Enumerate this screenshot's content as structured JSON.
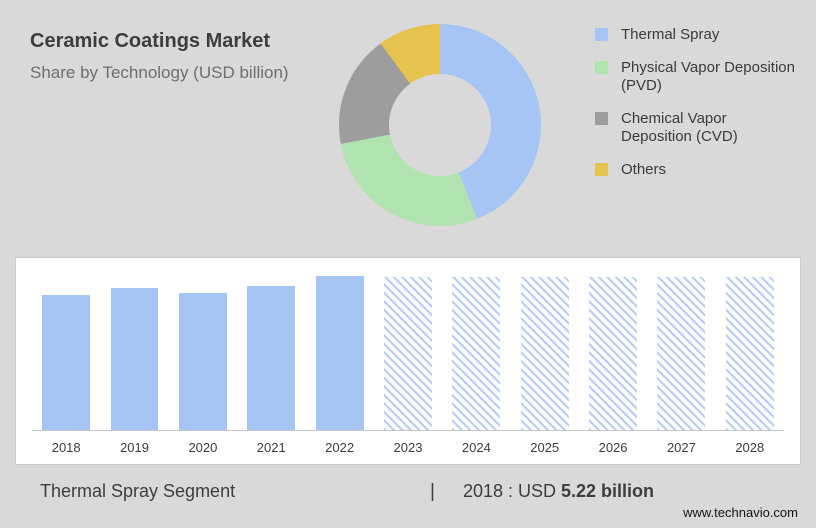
{
  "header": {
    "title": "Ceramic Coatings Market",
    "subtitle": "Share by Technology (USD billion)"
  },
  "colors": {
    "thermal_spray_blue": "#a6c4f4",
    "pvd_green": "#b0e3b0",
    "cvd_gray": "#9d9d9d",
    "others_yellow": "#e6c24e",
    "background_gray": "#d9d9d9"
  },
  "chart_data": [
    {
      "type": "pie",
      "subtype": "donut",
      "title": "Share by Technology (USD billion)",
      "legend_position": "right",
      "segments": [
        {
          "label": "Thermal Spray",
          "color": "#a6c4f4",
          "percent": 44
        },
        {
          "label": "Physical Vapor Deposition (PVD)",
          "color": "#b0e3b0",
          "percent": 28
        },
        {
          "label": "Chemical Vapor Deposition (CVD)",
          "color": "#9d9d9d",
          "percent": 18
        },
        {
          "label": "Others",
          "color": "#e6c24e",
          "percent": 10
        }
      ]
    },
    {
      "type": "bar",
      "title": "Thermal Spray segment size by year (USD billion)",
      "xlabel": "",
      "ylabel": "",
      "ylim": [
        0,
        6.1
      ],
      "grid": false,
      "categories": [
        "2018",
        "2019",
        "2020",
        "2021",
        "2022",
        "2023",
        "2024",
        "2025",
        "2026",
        "2027",
        "2028"
      ],
      "series": [
        {
          "name": "Thermal Spray",
          "values": [
            5.22,
            5.5,
            5.3,
            5.55,
            5.95,
            null,
            null,
            null,
            null,
            null,
            null
          ]
        }
      ],
      "forecast_categories": [
        "2023",
        "2024",
        "2025",
        "2026",
        "2027",
        "2028"
      ],
      "forecast_display_value": 5.9,
      "bar_color": "#a6c4f4",
      "forecast_hatch_color": "#b9cef2"
    }
  ],
  "footer": {
    "segment_label": "Thermal Spray Segment",
    "divider": "|",
    "stat_prefix": "2018 : USD",
    "stat_value": "5.22 billion",
    "website": "www.technavio.com"
  }
}
